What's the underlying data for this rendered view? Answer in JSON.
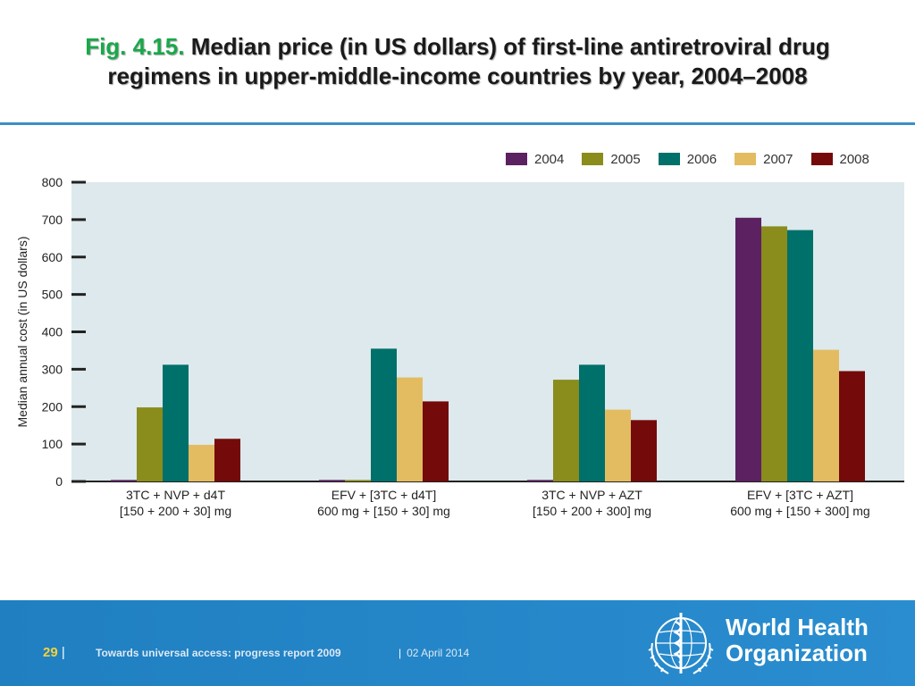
{
  "slide": {
    "title_prefix": "Fig. 4.15.",
    "title_text": "Median price (in US dollars) of first-line antiretroviral drug regimens in upper-middle-income countries by year, 2004–2008"
  },
  "footer": {
    "page_number": "29",
    "report_title": "Towards universal access: progress report 2009",
    "date": "02 April 2014",
    "org_line1": "World Health",
    "org_line2": "Organization"
  },
  "colors": {
    "accent_green": "#1aa84a",
    "rule_blue": "#3b8fc6",
    "footer_blue": "#2384c6",
    "plot_bg": "#dde9ec"
  },
  "chart_data": {
    "type": "bar",
    "title": "",
    "xlabel": "",
    "ylabel": "Median annual cost (in US dollars)",
    "ylim": [
      0,
      800
    ],
    "yticks": [
      0,
      100,
      200,
      300,
      400,
      500,
      600,
      700,
      800
    ],
    "grid": false,
    "legend_position": "top-right",
    "categories": [
      [
        "3TC + NVP + d4T",
        "[150 + 200 + 30] mg"
      ],
      [
        "EFV + [3TC + d4T]",
        "600 mg + [150 + 30] mg"
      ],
      [
        "3TC + NVP + AZT",
        "[150 + 200 + 300] mg"
      ],
      [
        "EFV + [3TC + AZT]",
        "600 mg + [150 + 300] mg"
      ]
    ],
    "series": [
      {
        "name": "2004",
        "color": "#5b2160",
        "values": [
          4,
          4,
          4,
          705
        ]
      },
      {
        "name": "2005",
        "color": "#8a8c1c",
        "values": [
          198,
          4,
          272,
          682
        ]
      },
      {
        "name": "2006",
        "color": "#00706a",
        "values": [
          312,
          355,
          312,
          672
        ]
      },
      {
        "name": "2007",
        "color": "#e3bc62",
        "values": [
          98,
          278,
          192,
          352
        ]
      },
      {
        "name": "2008",
        "color": "#750a0a",
        "values": [
          114,
          214,
          164,
          295
        ]
      }
    ]
  }
}
